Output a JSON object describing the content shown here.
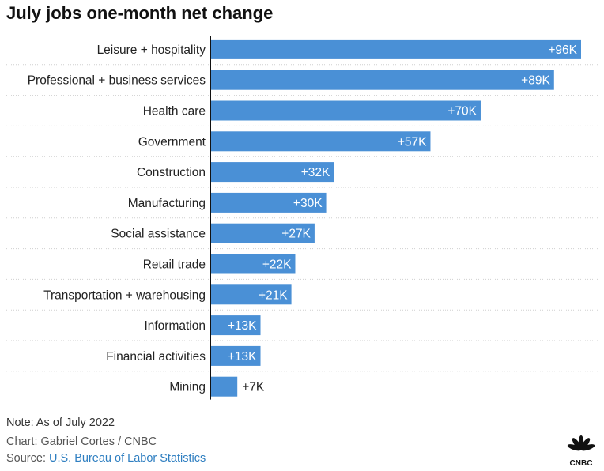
{
  "title": "July jobs one-month net change",
  "chart_data": {
    "type": "bar",
    "orientation": "horizontal",
    "categories": [
      "Leisure + hospitality",
      "Professional + business services",
      "Health care",
      "Government",
      "Construction",
      "Manufacturing",
      "Social assistance",
      "Retail trade",
      "Transportation + warehousing",
      "Information",
      "Financial activities",
      "Mining"
    ],
    "values": [
      96,
      89,
      70,
      57,
      32,
      30,
      27,
      22,
      21,
      13,
      13,
      7
    ],
    "data_labels": [
      "+96K",
      "+89K",
      "+70K",
      "+57K",
      "+32K",
      "+30K",
      "+27K",
      "+22K",
      "+21K",
      "+13K",
      "+13K",
      "+7K"
    ],
    "unit": "thousands",
    "xlim": [
      0,
      96
    ],
    "grid": false,
    "bar_color": "#4a90d6",
    "row_divider_color": "#cfcfcf"
  },
  "footer": {
    "note": "Note: As of July 2022",
    "credit": "Chart: Gabriel Cortes / CNBC",
    "source_prefix": "Source: ",
    "source_link": "U.S. Bureau of Labor Statistics"
  },
  "logo": {
    "text": "CNBC",
    "icon": "peacock-icon"
  }
}
